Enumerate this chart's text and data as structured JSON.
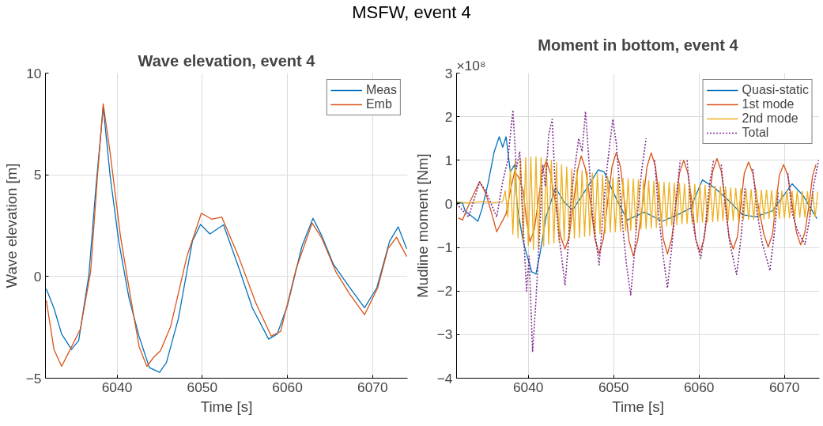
{
  "chart_data": [
    {
      "type": "line",
      "title": "Wave elevation, event 4",
      "xlabel": "Time [s]",
      "ylabel": "Wave elevation [m]",
      "annotations": [
        "MSFW, event 4"
      ],
      "xlim": [
        6031.6,
        6074.1
      ],
      "xticks": [
        6040,
        6050,
        6060,
        6070
      ],
      "ylim": [
        -5,
        10
      ],
      "yticks": [
        -5,
        0,
        5,
        10
      ],
      "grid": true,
      "legend": "top right",
      "line_style": "solid",
      "series": [
        {
          "name": "Meas",
          "color": "#0072bd",
          "x": [
            6031.7,
            6032.6,
            6033.5,
            6034.66,
            6035.5,
            6036.7,
            6037.5,
            6038.38,
            6039.2,
            6040.2,
            6041.4,
            6042.6,
            6043.8,
            6045.0,
            6045.8,
            6047.2,
            6048.85,
            6049.8,
            6050.9,
            6052.5,
            6054.26,
            6055.9,
            6057.8,
            6058.8,
            6060.0,
            6061.7,
            6063.0,
            6064.05,
            6065.4,
            6067.1,
            6069.05,
            6070.5,
            6072.0,
            6073.0,
            6074.0
          ],
          "values": [
            -0.61,
            -1.56,
            -2.83,
            -3.59,
            -3.15,
            0.09,
            4.28,
            8.34,
            4.91,
            1.74,
            -1.05,
            -2.96,
            -4.48,
            -4.71,
            -4.23,
            -2.07,
            1.74,
            2.56,
            2.09,
            2.54,
            0.47,
            -1.56,
            -3.08,
            -2.83,
            -1.43,
            1.48,
            2.86,
            1.99,
            0.6,
            -0.42,
            -1.54,
            -0.55,
            1.74,
            2.44,
            1.36
          ]
        },
        {
          "name": "Emb",
          "color": "#d95319",
          "x": [
            6031.7,
            6032.6,
            6033.5,
            6034.66,
            6035.7,
            6036.9,
            6037.7,
            6038.38,
            6039.2,
            6040.4,
            6041.6,
            6042.6,
            6043.5,
            6044.3,
            6045.1,
            6046.3,
            6048.2,
            6049.9,
            6051.1,
            6052.3,
            6054.26,
            6056.3,
            6058.1,
            6059.2,
            6061.0,
            6062.9,
            6064.05,
            6065.7,
            6067.3,
            6069.05,
            6070.6,
            6071.8,
            6072.8,
            6074.0
          ],
          "values": [
            -1.18,
            -3.59,
            -4.42,
            -3.46,
            -2.58,
            0.22,
            4.91,
            8.49,
            6.05,
            1.99,
            -1.05,
            -3.46,
            -4.42,
            -3.97,
            -3.65,
            -2.45,
            0.98,
            3.11,
            2.82,
            2.92,
            0.98,
            -1.31,
            -2.93,
            -2.7,
            0.34,
            2.63,
            1.87,
            0.22,
            -0.86,
            -1.88,
            -0.55,
            1.36,
            1.93,
            0.98
          ]
        }
      ]
    },
    {
      "type": "line",
      "title": "Moment in bottom, event 4",
      "xlabel": "Time [s]",
      "ylabel": "Mudline moment [Nm]",
      "annotations": [
        "×10⁸"
      ],
      "xlim": [
        6031.6,
        6074.1
      ],
      "xticks": [
        6040,
        6050,
        6060,
        6070
      ],
      "ylim": [
        -4,
        3
      ],
      "yticks": [
        -4,
        -3,
        -2,
        -1,
        0,
        1,
        2,
        3
      ],
      "grid": true,
      "legend": "top right",
      "series": [
        {
          "name": "Quasi-static",
          "color": "#0072bd",
          "line_style": "solid",
          "x": [
            6031.6,
            6032.3,
            6032.6,
            6034.1,
            6034.6,
            6035.3,
            6036.0,
            6036.6,
            6037.0,
            6037.4,
            6037.9,
            6038.4,
            6038.7,
            6039.4,
            6040.4,
            6040.9,
            6041.4,
            6042.1,
            6043.2,
            6044.2,
            6045.2,
            6046.5,
            6048.2,
            6048.9,
            6050.3,
            6051.6,
            6053.6,
            6055.7,
            6057.7,
            6059.0,
            6060.4,
            6061.8,
            6063.5,
            6065.1,
            6066.6,
            6068.6,
            6070.9,
            6072.2,
            6073.8
          ],
          "values": [
            0.03,
            0.02,
            -0.16,
            -0.4,
            -0.1,
            0.48,
            1.19,
            1.54,
            1.3,
            1.54,
            0.73,
            0.9,
            -0.05,
            -0.87,
            -1.56,
            -1.61,
            -1.11,
            -0.28,
            0.37,
            0.04,
            -0.14,
            0.25,
            0.78,
            0.73,
            0.12,
            -0.37,
            -0.19,
            -0.4,
            -0.23,
            -0.1,
            0.55,
            0.37,
            0.07,
            -0.25,
            -0.3,
            -0.16,
            0.46,
            0.19,
            -0.34
          ]
        },
        {
          "name": "1st mode",
          "color": "#d95319",
          "line_style": "solid",
          "x": [
            6031.8,
            6032.3,
            6033.3,
            6034.3,
            6035.0,
            6035.6,
            6036.3,
            6037.4,
            6037.9,
            6038.4,
            6038.9,
            6039.4,
            6039.8,
            6040.2,
            6040.7,
            6041.2,
            6041.6,
            6042.1,
            6042.6,
            6043.2,
            6043.8,
            6044.3,
            6044.8,
            6045.3,
            6045.8,
            6046.2,
            6046.7,
            6047.3,
            6047.8,
            6048.3,
            6048.8,
            6049.3,
            6049.8,
            6050.3,
            6050.8,
            6051.3,
            6051.8,
            6052.3,
            6052.8,
            6053.4,
            6053.9,
            6054.4,
            6054.9,
            6055.4,
            6055.8,
            6056.3,
            6056.8,
            6057.3,
            6057.7,
            6058.2,
            6058.7,
            6059.2,
            6059.6,
            6060.1,
            6060.6,
            6061.1,
            6061.6,
            6062.1,
            6062.6,
            6063.1,
            6063.5,
            6064.0,
            6064.5,
            6064.9,
            6065.3,
            6065.8,
            6066.3,
            6066.9,
            6067.6,
            6068.1,
            6068.6,
            6069.0,
            6069.4,
            6069.9,
            6070.4,
            6070.9,
            6071.4,
            6071.9,
            6072.4,
            6072.9,
            6073.3,
            6073.7
          ],
          "values": [
            -0.32,
            -0.37,
            0.1,
            0.51,
            0.25,
            -0.14,
            -0.64,
            -0.23,
            0.3,
            0.74,
            0.6,
            0.3,
            -0.4,
            -0.87,
            -0.6,
            0.1,
            0.7,
            0.99,
            0.7,
            0,
            -0.75,
            -1.04,
            -0.75,
            0.05,
            0.8,
            1.1,
            0.8,
            0,
            -0.8,
            -1.15,
            -0.8,
            0.05,
            0.85,
            1.17,
            0.85,
            0,
            -0.85,
            -1.2,
            -0.85,
            0,
            0.85,
            1.17,
            0.85,
            0,
            -0.8,
            -1.15,
            -0.8,
            0,
            0.7,
            1.0,
            0.7,
            0,
            -0.8,
            -1.11,
            -0.8,
            0,
            0.75,
            1.04,
            0.75,
            0,
            -0.75,
            -1.04,
            -0.75,
            0,
            0.7,
            0.96,
            0.7,
            0,
            -0.7,
            -0.99,
            -0.7,
            0,
            0.65,
            0.9,
            0.65,
            0,
            -0.65,
            -0.94,
            -0.65,
            0,
            0.65,
            0.9
          ]
        },
        {
          "name": "2nd mode",
          "color": "#edb120",
          "line_style": "solid",
          "x": [
            6031.6,
            6033.0,
            6034.5,
            6036.0,
            6037.0,
            6037.3,
            6037.6,
            6037.9,
            6038.2,
            6038.5,
            6038.8,
            6039.1,
            6039.4,
            6039.7,
            6040.0,
            6040.3,
            6040.6,
            6040.9,
            6041.2,
            6041.5,
            6041.8,
            6042.1,
            6042.4,
            6042.7,
            6043.0,
            6043.3,
            6043.6,
            6043.9,
            6044.2,
            6044.5,
            6044.8,
            6045.1,
            6045.4,
            6045.7,
            6046.0,
            6046.3,
            6046.6,
            6046.9,
            6047.2,
            6047.5,
            6047.8,
            6048.1,
            6048.4,
            6048.7,
            6049.0,
            6049.3,
            6049.6,
            6049.9,
            6050.2,
            6050.5,
            6050.8,
            6051.1,
            6051.4,
            6051.7,
            6052.0,
            6052.3,
            6052.6,
            6052.9,
            6053.2,
            6053.5,
            6053.8,
            6054.1,
            6054.4,
            6054.7,
            6055.0,
            6055.3,
            6055.6,
            6055.9,
            6056.2,
            6056.5,
            6056.8,
            6057.1,
            6057.4,
            6057.7,
            6058.0,
            6058.3,
            6058.6,
            6058.9,
            6059.2,
            6059.5,
            6059.8,
            6060.1,
            6060.4,
            6060.7,
            6061.0,
            6061.3,
            6061.6,
            6061.9,
            6062.2,
            6062.5,
            6062.8,
            6063.1,
            6063.4,
            6063.7,
            6064.0,
            6064.3,
            6064.6,
            6064.9,
            6065.2,
            6065.5,
            6065.8,
            6066.1,
            6066.4,
            6066.7,
            6067.0,
            6067.3,
            6067.6,
            6067.9,
            6068.2,
            6068.5,
            6068.8,
            6069.1,
            6069.4,
            6069.7,
            6070.0,
            6070.3,
            6070.6,
            6070.9,
            6071.2,
            6071.5,
            6071.8,
            6072.1,
            6072.4,
            6072.7,
            6073.0,
            6073.3,
            6073.6,
            6073.9
          ],
          "values": [
            0.05,
            0.02,
            0.05,
            0.03,
            0.05,
            0.3,
            -0.3,
            0.8,
            -0.7,
            1.0,
            -0.78,
            1.02,
            -0.85,
            1.06,
            -0.95,
            1.08,
            -1.05,
            1.08,
            -1.0,
            1.06,
            -0.97,
            1.04,
            -0.93,
            1.0,
            -0.9,
            0.95,
            -0.87,
            0.9,
            -0.84,
            0.85,
            -0.81,
            0.8,
            -0.79,
            0.78,
            -0.77,
            0.76,
            -0.75,
            0.74,
            -0.73,
            0.71,
            -0.71,
            0.69,
            -0.69,
            0.66,
            -0.67,
            0.63,
            -0.65,
            0.6,
            -0.64,
            0.6,
            -0.63,
            0.59,
            -0.62,
            0.58,
            -0.61,
            0.57,
            -0.6,
            0.56,
            -0.58,
            0.55,
            -0.57,
            0.54,
            -0.56,
            0.52,
            -0.55,
            0.5,
            -0.53,
            0.5,
            -0.51,
            0.49,
            -0.49,
            0.48,
            -0.48,
            0.47,
            -0.46,
            0.46,
            -0.45,
            0.45,
            -0.44,
            0.45,
            -0.43,
            0.44,
            -0.42,
            0.43,
            -0.42,
            0.42,
            -0.41,
            0.41,
            -0.4,
            0.4,
            -0.39,
            0.39,
            -0.39,
            0.37,
            -0.38,
            0.36,
            -0.37,
            0.35,
            -0.37,
            0.34,
            -0.36,
            0.33,
            -0.36,
            0.33,
            -0.35,
            0.32,
            -0.35,
            0.32,
            -0.34,
            0.31,
            -0.34,
            0.31,
            -0.33,
            0.3,
            -0.33,
            0.3,
            -0.32,
            0.29,
            -0.32,
            0.29,
            -0.31,
            0.29,
            -0.31,
            0.28,
            -0.3,
            0.28,
            -0.3,
            0.28
          ]
        },
        {
          "name": "Total",
          "color": "#7e2f8e",
          "line_style": "dotted",
          "x": [
            6031.6,
            6033.0,
            6034.3,
            6035.0,
            6036.3,
            6037.0,
            6037.6,
            6038.2,
            6038.6,
            6039.0,
            6039.4,
            6039.8,
            6040.1,
            6040.5,
            6040.9,
            6041.3,
            6041.7,
            6042.0,
            6042.4,
            6042.8,
            6043.1,
            6043.5,
            6043.9,
            6044.3,
            6044.7,
            6045.1,
            6045.5,
            6045.9,
            6046.3,
            6046.7,
            6047.1,
            6047.5,
            6047.9,
            6048.3,
            6048.7,
            6049.1,
            6049.5,
            6049.9,
            6050.3,
            6050.7,
            6051.1,
            6051.5,
            6052.0,
            6052.4,
            6052.8,
            6053.3,
            6053.8,
            6054.3,
            6054.8,
            6055.3,
            6055.8,
            6056.3,
            6056.8,
            6057.3,
            6057.8,
            6058.2,
            6058.6,
            6059.1,
            6059.6,
            6060.2,
            6060.7,
            6061.2,
            6061.7,
            6062.1,
            6062.6,
            6063.1,
            6063.6,
            6064.4,
            6064.9,
            6065.4,
            6065.8,
            6066.3,
            6066.8,
            6067.4,
            6068.3,
            6068.8,
            6069.3,
            6069.9,
            6070.4,
            6070.9,
            6071.5,
            6072.4,
            6072.9,
            6073.4,
            6074.0
          ],
          "values": [
            0.0,
            -0.3,
            0.5,
            0.3,
            -0.3,
            0.5,
            1.0,
            2.15,
            0.8,
            1.2,
            -0.5,
            -2.0,
            -1.2,
            -3.4,
            -2.2,
            -0.8,
            0.9,
            0.4,
            1.6,
            1.94,
            0.6,
            -0.6,
            -1.2,
            -1.87,
            -0.9,
            0.3,
            0.9,
            1.5,
            1.2,
            2.12,
            1.0,
            -0.2,
            -0.8,
            -1.4,
            -0.4,
            0.6,
            1.3,
            1.94,
            1.4,
            0.4,
            -0.6,
            -1.4,
            -2.09,
            -1.2,
            -0.2,
            0.8,
            1.5,
            null,
            1.0,
            -0.3,
            -1.2,
            -1.93,
            -1.0,
            0.1,
            1.0,
            null,
            1.0,
            -0.2,
            -0.8,
            -1.25,
            -0.6,
            0.4,
            1.0,
            null,
            0.9,
            -0.1,
            -0.9,
            -1.62,
            -0.8,
            0.4,
            null,
            0.8,
            -0.2,
            -0.9,
            -1.53,
            -0.7,
            0.3,
            null,
            0.7,
            -0.2,
            -0.6,
            -0.93,
            -0.4,
            0.4,
            1.0
          ]
        }
      ]
    }
  ]
}
